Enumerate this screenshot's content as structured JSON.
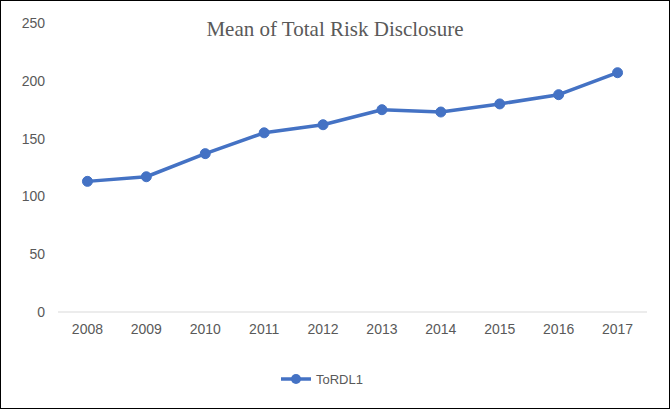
{
  "chart_data": {
    "type": "line",
    "title": "Mean of Total Risk Disclosure",
    "categories": [
      "2008",
      "2009",
      "2010",
      "2011",
      "2012",
      "2013",
      "2014",
      "2015",
      "2016",
      "2017"
    ],
    "series": [
      {
        "name": "ToRDL1",
        "color": "#4472c4",
        "marker": "circle",
        "values": [
          113,
          117,
          137,
          155,
          162,
          175,
          173,
          180,
          188,
          207
        ]
      }
    ],
    "ylim": [
      0,
      250
    ],
    "yticks": [
      0,
      50,
      100,
      150,
      200,
      250
    ],
    "grid": false,
    "legend": "bottom"
  }
}
